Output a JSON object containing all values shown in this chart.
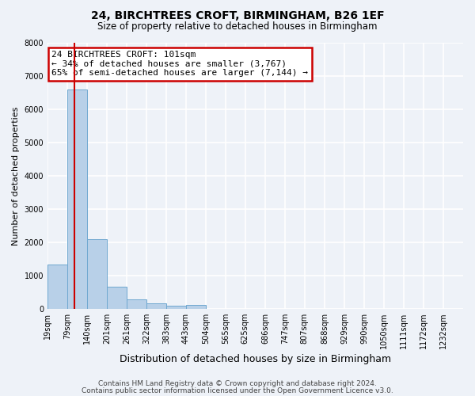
{
  "title": "24, BIRCHTREES CROFT, BIRMINGHAM, B26 1EF",
  "subtitle": "Size of property relative to detached houses in Birmingham",
  "xlabel": "Distribution of detached houses by size in Birmingham",
  "ylabel": "Number of detached properties",
  "bar_labels": [
    "19sqm",
    "79sqm",
    "140sqm",
    "201sqm",
    "261sqm",
    "322sqm",
    "383sqm",
    "443sqm",
    "504sqm",
    "565sqm",
    "625sqm",
    "686sqm",
    "747sqm",
    "807sqm",
    "868sqm",
    "929sqm",
    "990sqm",
    "1050sqm",
    "1111sqm",
    "1172sqm",
    "1232sqm"
  ],
  "bar_values": [
    1320,
    6600,
    2080,
    650,
    290,
    150,
    80,
    100,
    0,
    0,
    0,
    0,
    0,
    0,
    0,
    0,
    0,
    0,
    0,
    0,
    0
  ],
  "bar_color": "#b8d0e8",
  "bar_edge_color": "#6fa8d0",
  "property_line_x": 101,
  "ylim": [
    0,
    8000
  ],
  "yticks": [
    0,
    1000,
    2000,
    3000,
    4000,
    5000,
    6000,
    7000,
    8000
  ],
  "annotation_box_text": "24 BIRCHTREES CROFT: 101sqm\n← 34% of detached houses are smaller (3,767)\n65% of semi-detached houses are larger (7,144) →",
  "annotation_box_color": "#ffffff",
  "annotation_box_edge_color": "#cc0000",
  "property_vline_color": "#cc0000",
  "footer1": "Contains HM Land Registry data © Crown copyright and database right 2024.",
  "footer2": "Contains public sector information licensed under the Open Government Licence v3.0.",
  "bg_color": "#eef2f8",
  "plot_bg_color": "#eef2f8",
  "grid_color": "#ffffff",
  "bin_edges": [
    19,
    79,
    140,
    201,
    261,
    322,
    383,
    443,
    504,
    565,
    625,
    686,
    747,
    807,
    868,
    929,
    990,
    1050,
    1111,
    1172,
    1232,
    1293
  ]
}
